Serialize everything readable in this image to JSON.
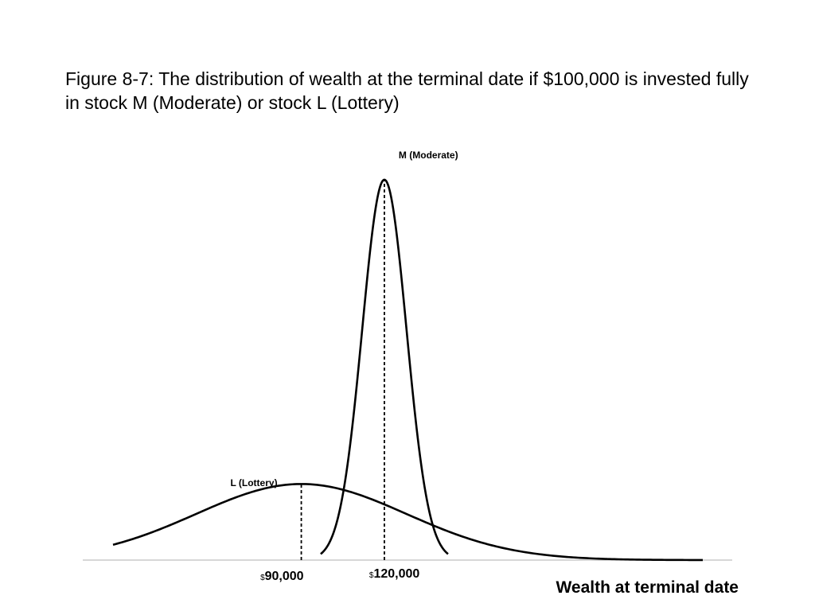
{
  "slide": {
    "title": "Figure 8-7: The distribution of wealth at the terminal date if $100,000 is invested fully in stock M (Moderate) or stock L (Lottery)"
  },
  "chart_data": {
    "type": "line",
    "title": "Figure 8-7: The distribution of wealth at the terminal date if $100,000 is invested fully in stock M (Moderate) or stock L (Lottery)",
    "xlabel": "Wealth at terminal date",
    "ylabel": "",
    "xlim": [
      22000,
      235000
    ],
    "ylim": [
      0,
      1.05
    ],
    "grid": false,
    "legend": "none",
    "series": [
      {
        "name": "M (Moderate)",
        "distribution": "normal",
        "mean": 120000,
        "std_dev": 8000,
        "relative_peak": 1.0,
        "support": [
          97000,
          143000
        ]
      },
      {
        "name": "L (Lottery)",
        "distribution": "normal",
        "mean": 90000,
        "std_dev": 38000,
        "relative_peak": 0.2,
        "support": [
          22000,
          235000
        ]
      }
    ],
    "reference_lines": [
      {
        "x": 90000,
        "label_prefix": "$",
        "label": "90,000"
      },
      {
        "x": 120000,
        "label_prefix": "$",
        "label": "120,000"
      }
    ]
  }
}
